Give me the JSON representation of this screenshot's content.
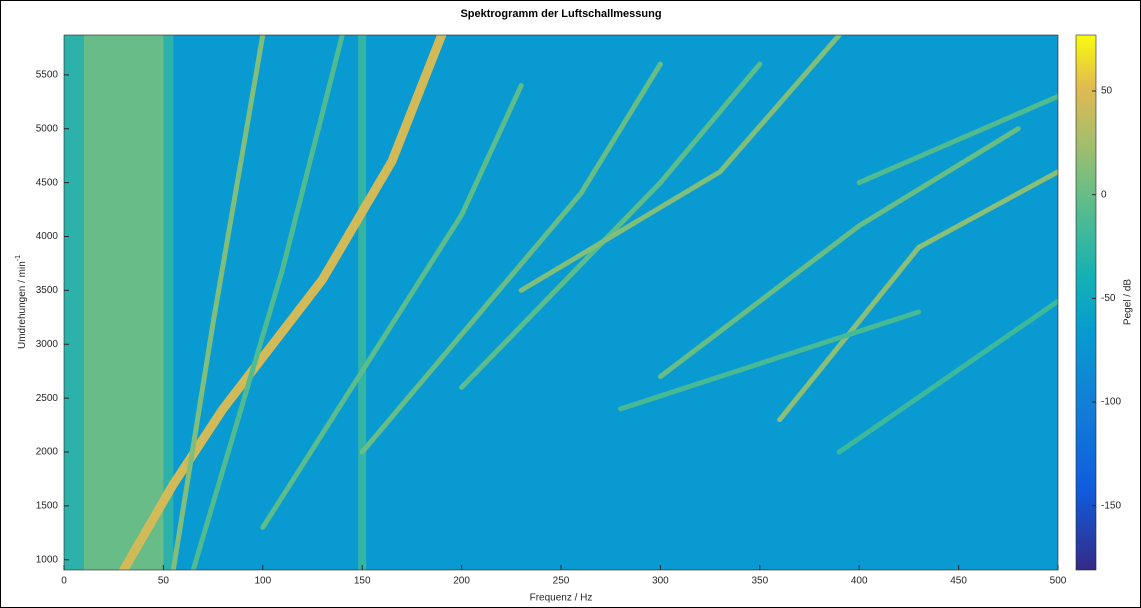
{
  "chart_data": {
    "type": "spectrogram",
    "title": "Spektrogramm der Luftschallmessung",
    "x_label": "Frequenz / Hz",
    "y_label": "Umdrehungen / min",
    "y_label_sup": "-1",
    "colorbar_label": "Pegel / dB",
    "xlim": [
      0,
      500
    ],
    "xticks": [
      0,
      50,
      100,
      150,
      200,
      250,
      300,
      350,
      400,
      450,
      500
    ],
    "ylim": [
      905,
      5870
    ],
    "yticks": [
      1000,
      1500,
      2000,
      2500,
      3000,
      3500,
      4000,
      4500,
      5000,
      5500
    ],
    "clim": [
      -181,
      77
    ],
    "cticks": [
      -150,
      -100,
      -50,
      0,
      50
    ],
    "colormap": "parula",
    "background_level": -68,
    "bands": [
      {
        "f": [
          0,
          55
        ],
        "level": -25
      },
      {
        "f": [
          10,
          50
        ],
        "level": 5
      },
      {
        "f": [
          148,
          152
        ],
        "level": -20
      }
    ],
    "ridges": [
      {
        "f": [
          30,
          55,
          80,
          130,
          165,
          190
        ],
        "rpm": [
          905,
          1700,
          2400,
          3600,
          4700,
          5870
        ],
        "level": 45
      },
      {
        "f": [
          55,
          75,
          100
        ],
        "rpm": [
          905,
          3200,
          5870
        ],
        "level": 10
      },
      {
        "f": [
          65,
          110,
          140
        ],
        "rpm": [
          905,
          3700,
          5870
        ],
        "level": -10
      },
      {
        "f": [
          100,
          200,
          230
        ],
        "rpm": [
          1300,
          4200,
          5400
        ],
        "level": -5
      },
      {
        "f": [
          150,
          260,
          300
        ],
        "rpm": [
          2000,
          4400,
          5600
        ],
        "level": 0
      },
      {
        "f": [
          200,
          300,
          350
        ],
        "rpm": [
          2600,
          4500,
          5600
        ],
        "level": -5
      },
      {
        "f": [
          230,
          330,
          390
        ],
        "rpm": [
          3500,
          4600,
          5870
        ],
        "level": 10
      },
      {
        "f": [
          300,
          400,
          480
        ],
        "rpm": [
          2700,
          4100,
          5000
        ],
        "level": 0
      },
      {
        "f": [
          360,
          430,
          500
        ],
        "rpm": [
          2300,
          3900,
          4600
        ],
        "level": 15
      },
      {
        "f": [
          390,
          500
        ],
        "rpm": [
          2000,
          3400
        ],
        "level": -20
      },
      {
        "f": [
          280,
          430
        ],
        "rpm": [
          2400,
          3300
        ],
        "level": -15
      },
      {
        "f": [
          400,
          500
        ],
        "rpm": [
          4500,
          5300
        ],
        "level": -10
      }
    ]
  }
}
